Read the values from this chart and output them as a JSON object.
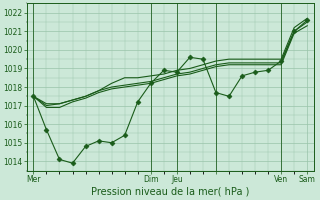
{
  "background_color": "#cce8d8",
  "plot_bg_color": "#cce8d8",
  "grid_color": "#99c4aa",
  "line_color": "#1a5c1a",
  "xlabel": "Pression niveau de la mer( hPa )",
  "ylim": [
    1013.5,
    1022.5
  ],
  "yticks": [
    1014,
    1015,
    1016,
    1017,
    1018,
    1019,
    1020,
    1021,
    1022
  ],
  "series": [
    [
      1017.5,
      1017.0,
      1017.1,
      1017.3,
      1017.5,
      1017.8,
      1018.0,
      1018.1,
      1018.2,
      1018.3,
      1018.5,
      1018.7,
      1018.8,
      1019.0,
      1019.2,
      1019.3,
      1019.3,
      1019.3,
      1019.3,
      1019.3,
      1021.0,
      1021.5
    ],
    [
      1017.5,
      1016.9,
      1016.9,
      1017.2,
      1017.4,
      1017.7,
      1017.9,
      1018.0,
      1018.1,
      1018.2,
      1018.4,
      1018.6,
      1018.7,
      1018.9,
      1019.1,
      1019.2,
      1019.2,
      1019.2,
      1019.2,
      1019.2,
      1020.9,
      1021.3
    ],
    [
      1017.5,
      1015.7,
      1014.1,
      1013.9,
      1014.8,
      1015.1,
      1015.0,
      1015.4,
      1017.2,
      1018.2,
      1018.9,
      1018.8,
      1019.6,
      1019.5,
      1017.7,
      1017.5,
      1018.6,
      1018.8,
      1018.9,
      1019.4,
      1021.0,
      1021.6
    ],
    [
      1017.5,
      1017.1,
      1017.1,
      1017.3,
      1017.5,
      1017.8,
      1018.2,
      1018.5,
      1018.5,
      1018.6,
      1018.7,
      1018.9,
      1019.0,
      1019.2,
      1019.4,
      1019.5,
      1019.5,
      1019.5,
      1019.5,
      1019.5,
      1021.2,
      1021.7
    ]
  ],
  "markers": [
    "None",
    "None",
    "D",
    "None"
  ],
  "msizes": [
    2,
    2,
    2.5,
    2
  ],
  "lws": [
    0.8,
    0.8,
    0.8,
    0.8
  ],
  "n_points": 22,
  "xtick_positions": [
    0,
    9,
    11,
    14,
    19,
    21
  ],
  "xtick_labels": [
    "Mer",
    "Dim",
    "Jeu",
    "",
    "Ven",
    "Sam"
  ],
  "vline_positions": [
    0,
    9,
    11,
    14,
    19
  ],
  "xlabel_fontsize": 7,
  "ytick_fontsize": 5.5,
  "xtick_fontsize": 5.5
}
